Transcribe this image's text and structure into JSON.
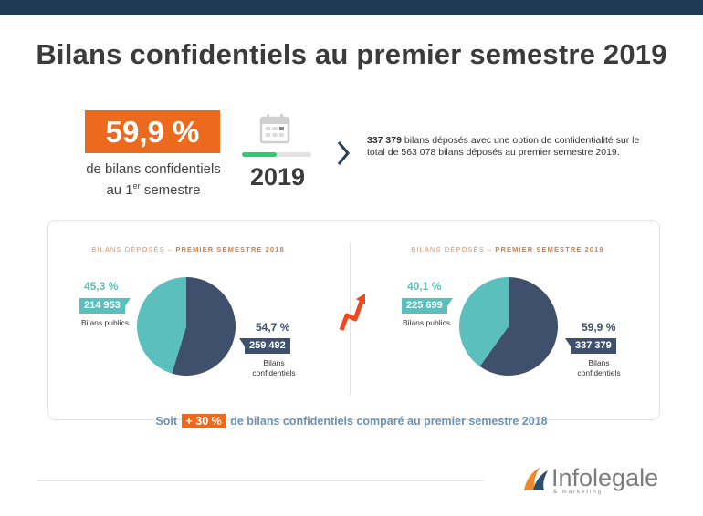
{
  "title": "Bilans confidentiels au premier semestre 2019",
  "headline": {
    "value": "59,9 %",
    "caption_line1": "de bilans confidentiels",
    "caption_line2_prefix": "au 1",
    "caption_line2_sup": "er",
    "caption_line2_suffix": " semestre"
  },
  "year_block": {
    "year": "2019",
    "progress_fraction": 0.5
  },
  "info": {
    "bold": "337 379",
    "text": " bilans déposés avec une option de confidentialité sur le total de 563 078 bilans déposés au premier semestre 2019."
  },
  "colors": {
    "orange": "#ec6a1e",
    "teal": "#5bbfbd",
    "navy": "#3e506b",
    "dark_bar": "#1f3a55"
  },
  "chart_data": [
    {
      "type": "pie",
      "title_prefix": "BILANS DÉPOSÉS – ",
      "title_main": "PREMIER SEMESTRE 2018",
      "slices": [
        {
          "name": "Bilans publics",
          "percent_label": "45,3 %",
          "value": 214953,
          "value_label": "214 953",
          "percent": 45.3,
          "color": "#5bbfbd"
        },
        {
          "name_line1": "Bilans",
          "name_line2": "confidentiels",
          "percent_label": "54,7 %",
          "value": 259492,
          "value_label": "259 492",
          "percent": 54.7,
          "color": "#3e506b"
        }
      ]
    },
    {
      "type": "pie",
      "title_prefix": "BILANS DÉPOSÉS – ",
      "title_main": "PREMIER SEMESTRE 2019",
      "slices": [
        {
          "name": "Bilans publics",
          "percent_label": "40,1 %",
          "value": 225699,
          "value_label": "225 699",
          "percent": 40.1,
          "color": "#5bbfbd"
        },
        {
          "name_line1": "Bilans",
          "name_line2": "confidentiels",
          "percent_label": "59,9 %",
          "value": 337379,
          "value_label": "337 379",
          "percent": 59.9,
          "color": "#3e506b"
        }
      ]
    }
  ],
  "summary": {
    "prefix": "Soit ",
    "highlight": "+ 30 %",
    "suffix": " de bilans confidentiels comparé au premier semestre 2018"
  },
  "logo": {
    "name": "Infolegale",
    "tagline": "& marketing"
  }
}
